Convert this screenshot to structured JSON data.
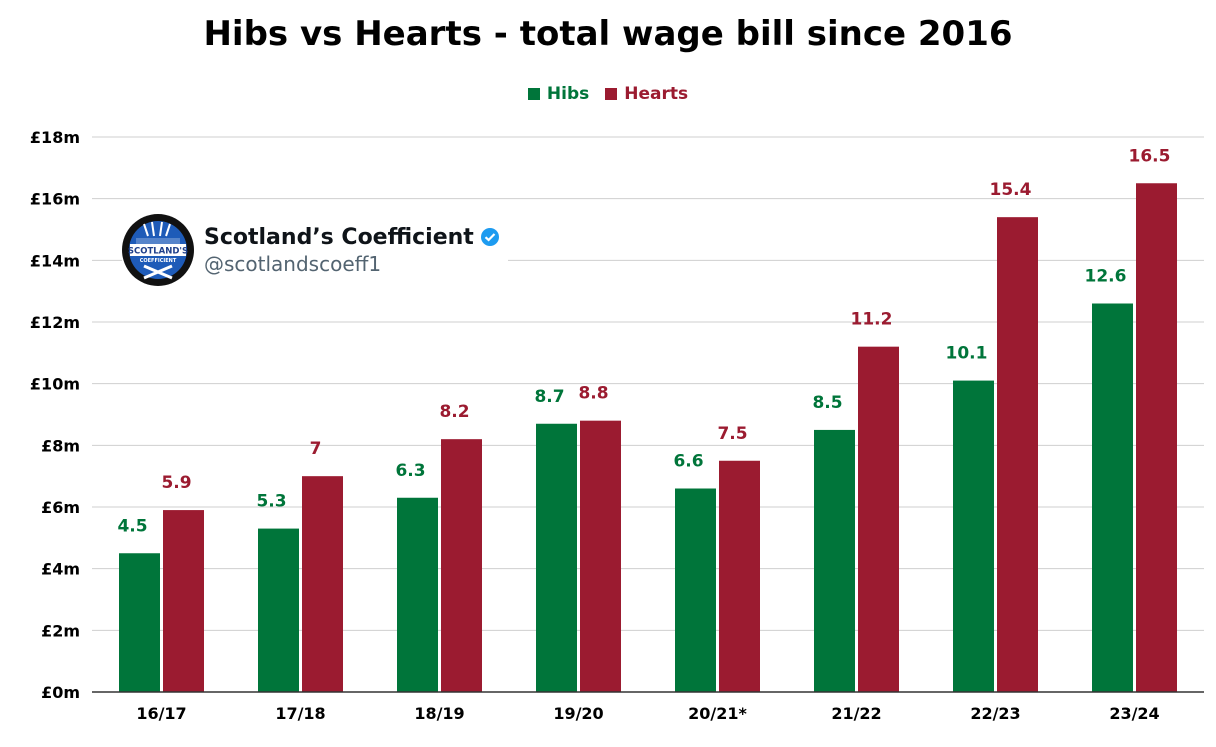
{
  "chart_data": {
    "type": "bar",
    "title": "Hibs vs Hearts - total wage bill since 2016",
    "categories": [
      "16/17",
      "17/18",
      "18/19",
      "19/20",
      "20/21*",
      "21/22",
      "22/23",
      "23/24"
    ],
    "series": [
      {
        "name": "Hibs",
        "color": "#00753a",
        "values": [
          4.5,
          5.3,
          6.3,
          8.7,
          6.6,
          8.5,
          10.1,
          12.6
        ],
        "labels": [
          "4.5",
          "5.3",
          "6.3",
          "8.7",
          "6.6",
          "8.5",
          "10.1",
          "12.6"
        ]
      },
      {
        "name": "Hearts",
        "color": "#9b1b30",
        "values": [
          5.9,
          7,
          8.2,
          8.8,
          7.5,
          11.2,
          15.4,
          16.5
        ],
        "labels": [
          "5.9",
          "7",
          "8.2",
          "8.8",
          "7.5",
          "11.2",
          "15.4",
          "16.5"
        ]
      }
    ],
    "ylim": [
      0,
      18
    ],
    "yticks": [
      0,
      2,
      4,
      6,
      8,
      10,
      12,
      14,
      16,
      18
    ],
    "ytick_labels": [
      "£0m",
      "£2m",
      "£4m",
      "£6m",
      "£8m",
      "£10m",
      "£12m",
      "£14m",
      "£16m",
      "£18m"
    ],
    "xlabel": "",
    "ylabel": "",
    "grid": true,
    "legend": "top-center"
  },
  "watermark": {
    "name": "Scotland’s Coefficient",
    "handle": "@scotlandscoeff1",
    "logo_text": "SCOTLAND'S",
    "logo_subtext": "COEFFICIENT",
    "verified_icon": "verified-badge-icon"
  }
}
